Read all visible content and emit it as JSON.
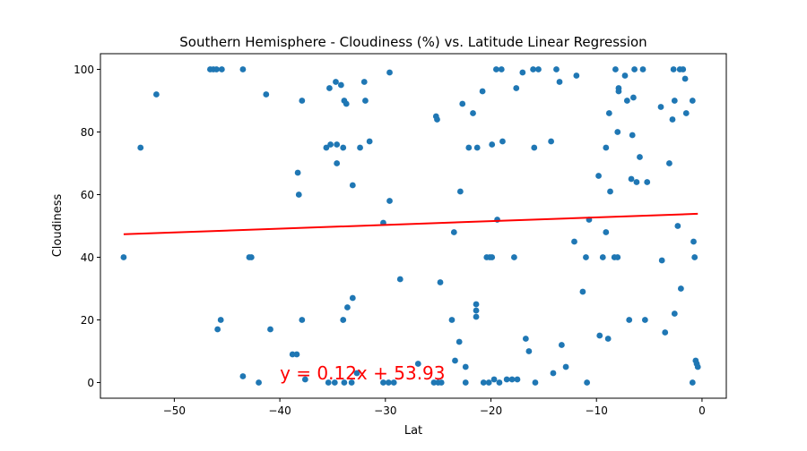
{
  "chart_data": {
    "type": "scatter",
    "title": "Southern Hemisphere - Cloudiness (%) vs. Latitude Linear Regression",
    "xlabel": "Lat",
    "ylabel": "Cloudiness",
    "xlim": [
      -57,
      2.3
    ],
    "ylim": [
      -5,
      105
    ],
    "xticks": [
      -50,
      -40,
      -30,
      -20,
      -10,
      0
    ],
    "xtick_labels": [
      "−50",
      "−40",
      "−30",
      "−20",
      "−10",
      "0"
    ],
    "yticks": [
      0,
      20,
      40,
      60,
      80,
      100
    ],
    "ytick_labels": [
      "0",
      "20",
      "40",
      "60",
      "80",
      "100"
    ],
    "grid": false,
    "marker_color": "#1f77b4",
    "series": [
      {
        "points": [
          [
            -54.8,
            40
          ],
          [
            -53.2,
            75
          ],
          [
            -51.7,
            92
          ],
          [
            -46.6,
            100
          ],
          [
            -46.3,
            100
          ],
          [
            -46.0,
            100
          ],
          [
            -45.5,
            100
          ],
          [
            -43.5,
            100
          ],
          [
            -41.3,
            92
          ],
          [
            -37.9,
            90
          ],
          [
            -35.3,
            94
          ],
          [
            -34.7,
            96
          ],
          [
            -34.2,
            95
          ],
          [
            -33.9,
            90
          ],
          [
            -33.7,
            89
          ],
          [
            -32.0,
            96
          ],
          [
            -31.9,
            90
          ],
          [
            -29.6,
            99
          ],
          [
            -35.6,
            75
          ],
          [
            -35.2,
            76
          ],
          [
            -34.6,
            76
          ],
          [
            -34.0,
            75
          ],
          [
            -32.4,
            75
          ],
          [
            -31.5,
            77
          ],
          [
            -38.3,
            67
          ],
          [
            -34.6,
            70
          ],
          [
            -33.1,
            63
          ],
          [
            -38.2,
            60
          ],
          [
            -29.6,
            58
          ],
          [
            -30.2,
            51
          ],
          [
            -42.9,
            40
          ],
          [
            -42.7,
            40
          ],
          [
            -28.6,
            33
          ],
          [
            -33.1,
            27
          ],
          [
            -33.6,
            24
          ],
          [
            -34.0,
            20
          ],
          [
            -37.9,
            20
          ],
          [
            -45.6,
            20
          ],
          [
            -45.9,
            17
          ],
          [
            -40.9,
            17
          ],
          [
            -38.8,
            9
          ],
          [
            -38.4,
            9
          ],
          [
            -43.5,
            2
          ],
          [
            -37.6,
            1
          ],
          [
            -35.4,
            0
          ],
          [
            -34.8,
            0
          ],
          [
            -33.9,
            0
          ],
          [
            -33.2,
            0
          ],
          [
            -32.7,
            3
          ],
          [
            -30.2,
            0
          ],
          [
            -29.7,
            0
          ],
          [
            -29.2,
            0
          ],
          [
            -42.0,
            0
          ],
          [
            -26.9,
            6
          ],
          [
            -25.4,
            0
          ],
          [
            -25.0,
            0
          ],
          [
            -24.7,
            0
          ],
          [
            -25.2,
            85
          ],
          [
            -25.1,
            84
          ],
          [
            -24.8,
            32
          ],
          [
            -23.7,
            20
          ],
          [
            -23.5,
            48
          ],
          [
            -23.4,
            7
          ],
          [
            -23.0,
            13
          ],
          [
            -22.9,
            61
          ],
          [
            -22.7,
            89
          ],
          [
            -22.4,
            5
          ],
          [
            -22.4,
            0
          ],
          [
            -22.1,
            75
          ],
          [
            -21.7,
            86
          ],
          [
            -21.3,
            75
          ],
          [
            -21.4,
            25
          ],
          [
            -21.4,
            23
          ],
          [
            -21.4,
            21
          ],
          [
            -20.8,
            93
          ],
          [
            -20.7,
            0
          ],
          [
            -20.4,
            40
          ],
          [
            -20.2,
            0
          ],
          [
            -20.1,
            40
          ],
          [
            -19.9,
            40
          ],
          [
            -19.9,
            76
          ],
          [
            -19.7,
            1
          ],
          [
            -19.5,
            100
          ],
          [
            -19.2,
            0
          ],
          [
            -19.0,
            100
          ],
          [
            -18.9,
            77
          ],
          [
            -19.4,
            52
          ],
          [
            -18.5,
            1
          ],
          [
            -18.0,
            1
          ],
          [
            -17.8,
            40
          ],
          [
            -17.6,
            94
          ],
          [
            -17.5,
            1
          ],
          [
            -17.0,
            99
          ],
          [
            -16.7,
            14
          ],
          [
            -16.4,
            10
          ],
          [
            -16.0,
            100
          ],
          [
            -15.9,
            75
          ],
          [
            -15.8,
            0
          ],
          [
            -15.5,
            100
          ],
          [
            -14.3,
            77
          ],
          [
            -14.1,
            3
          ],
          [
            -13.8,
            100
          ],
          [
            -13.5,
            96
          ],
          [
            -13.3,
            12
          ],
          [
            -12.9,
            5
          ],
          [
            -12.1,
            45
          ],
          [
            -11.9,
            98
          ],
          [
            -11.3,
            29
          ],
          [
            -11.0,
            40
          ],
          [
            -10.9,
            0
          ],
          [
            -10.7,
            52
          ],
          [
            -9.8,
            66
          ],
          [
            -9.7,
            15
          ],
          [
            -9.4,
            40
          ],
          [
            -9.1,
            75
          ],
          [
            -9.1,
            48
          ],
          [
            -8.9,
            14
          ],
          [
            -8.8,
            86
          ],
          [
            -8.7,
            61
          ],
          [
            -8.3,
            40
          ],
          [
            -8.2,
            100
          ],
          [
            -8.0,
            80
          ],
          [
            -8.0,
            40
          ],
          [
            -7.9,
            94
          ],
          [
            -7.9,
            93
          ],
          [
            -7.3,
            98
          ],
          [
            -7.1,
            90
          ],
          [
            -6.9,
            20
          ],
          [
            -6.7,
            65
          ],
          [
            -6.6,
            79
          ],
          [
            -6.5,
            91
          ],
          [
            -6.4,
            100
          ],
          [
            -6.2,
            64
          ],
          [
            -5.9,
            72
          ],
          [
            -5.6,
            100
          ],
          [
            -5.4,
            20
          ],
          [
            -5.2,
            64
          ],
          [
            -3.9,
            88
          ],
          [
            -3.8,
            39
          ],
          [
            -3.5,
            16
          ],
          [
            -3.1,
            70
          ],
          [
            -2.8,
            84
          ],
          [
            -2.7,
            100
          ],
          [
            -2.6,
            90
          ],
          [
            -2.6,
            22
          ],
          [
            -2.3,
            50
          ],
          [
            -2.1,
            100
          ],
          [
            -2.0,
            30
          ],
          [
            -1.8,
            100
          ],
          [
            -1.6,
            97
          ],
          [
            -1.5,
            86
          ],
          [
            -0.9,
            90
          ],
          [
            -0.9,
            0
          ],
          [
            -0.8,
            45
          ],
          [
            -0.7,
            40
          ],
          [
            -0.6,
            7
          ],
          [
            -0.5,
            6
          ],
          [
            -0.4,
            5
          ]
        ]
      }
    ],
    "regression": {
      "slope": 0.12,
      "intercept": 53.93,
      "x_range": [
        -54.8,
        -0.4
      ],
      "color": "#ff0000",
      "equation_label": "y = 0.12x + 53.93",
      "label_position": [
        -40,
        1
      ]
    }
  }
}
